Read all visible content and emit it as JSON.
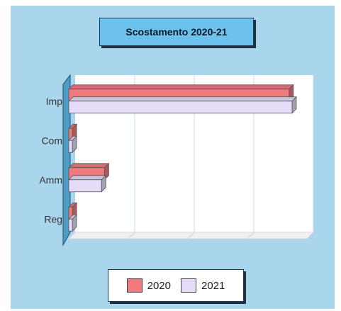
{
  "chart_data": {
    "type": "bar",
    "orientation": "horizontal",
    "title": "Scostamento 2020-21",
    "categories": [
      "Imp",
      "Com",
      "Amm",
      "Reg"
    ],
    "series": [
      {
        "name": "2020",
        "color": "#f07b7f",
        "values": [
          3.7,
          0.06,
          0.6,
          0.06
        ]
      },
      {
        "name": "2021",
        "color": "#e6dcf8",
        "values": [
          3.75,
          0.06,
          0.55,
          0.06
        ]
      }
    ],
    "xlim": [
      0,
      4
    ],
    "grid": true,
    "legend_position": "bottom"
  }
}
